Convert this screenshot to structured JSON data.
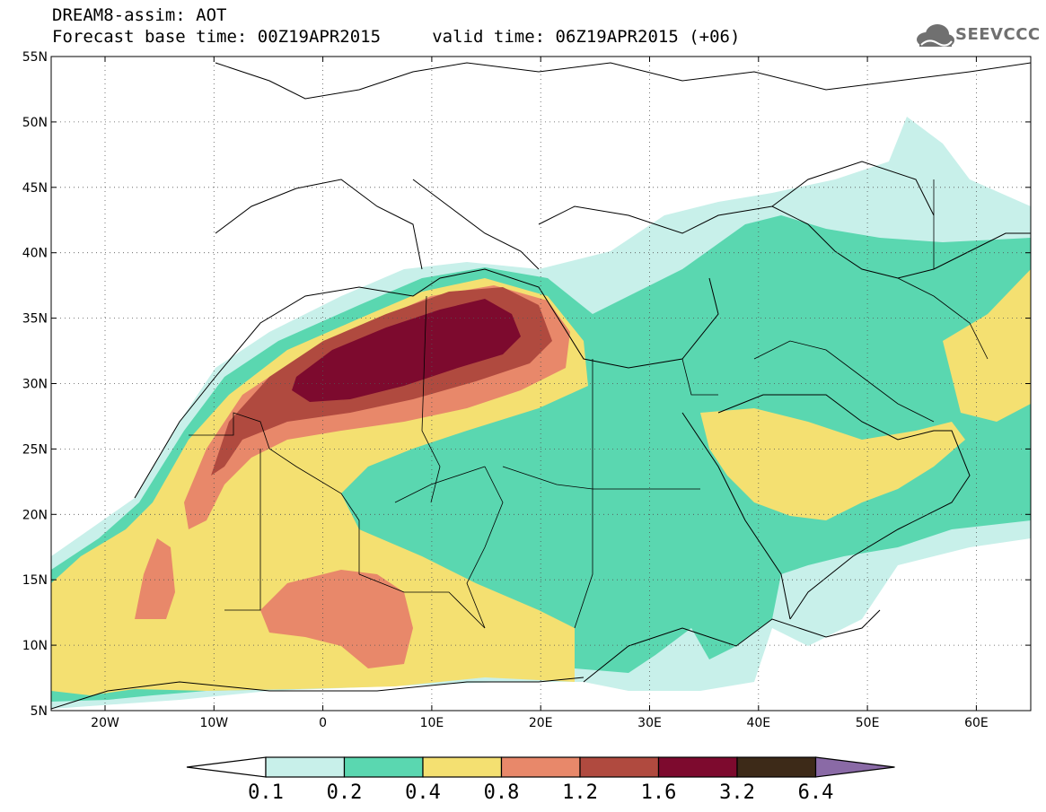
{
  "header": {
    "line1": "DREAM8-assim: AOT",
    "line2": "Forecast base time: 00Z19APR2015     valid time: 06Z19APR2015 (+06)"
  },
  "logo": {
    "text": "SEEVCCC",
    "icon": "cloud-icon"
  },
  "map": {
    "lat_labels": [
      "55N",
      "50N",
      "45N",
      "40N",
      "35N",
      "30N",
      "25N",
      "20N",
      "15N",
      "10N",
      "5N"
    ],
    "lon_labels": [
      "20W",
      "10W",
      "0",
      "10E",
      "20E",
      "30E",
      "40E",
      "50E",
      "60E"
    ],
    "grid": "dotted"
  },
  "colorbar": {
    "labels": [
      "0.1",
      "0.2",
      "0.4",
      "0.8",
      "1.2",
      "1.6",
      "3.2",
      "6.4"
    ],
    "colors": [
      "#ffffff",
      "#c8f0ea",
      "#5ad7b0",
      "#f4e071",
      "#e8886a",
      "#b04a3f",
      "#7d0a2e",
      "#3d2a18",
      "#8a6aa6"
    ]
  }
}
